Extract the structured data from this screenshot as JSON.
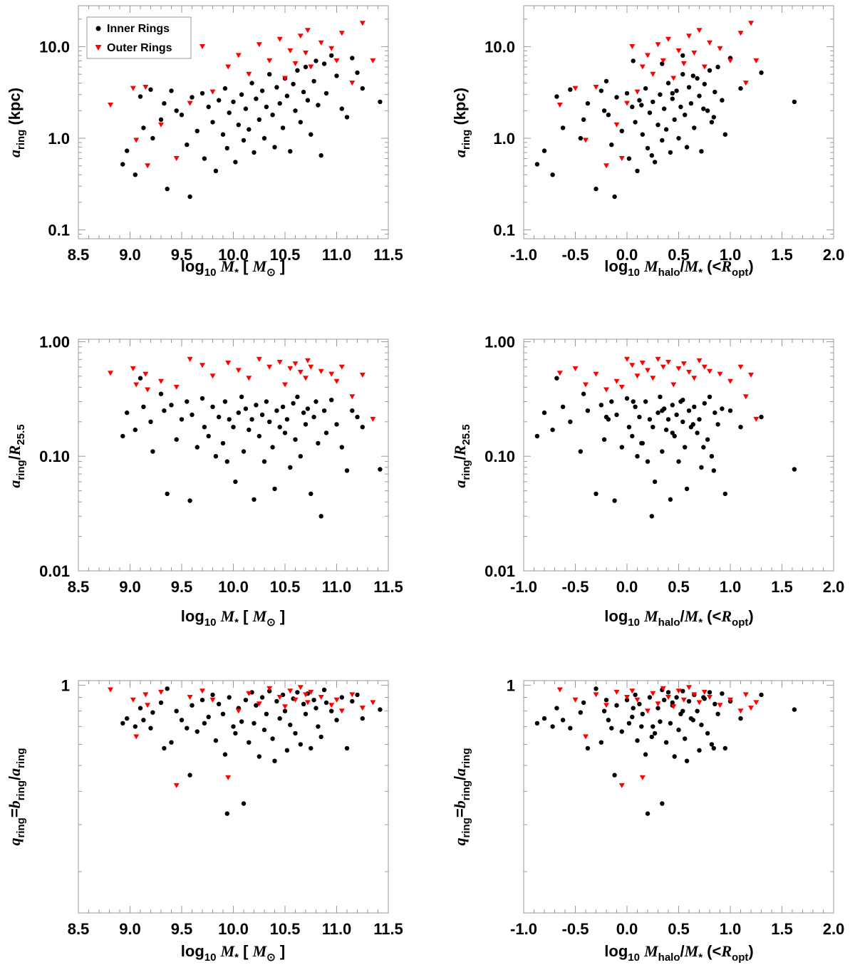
{
  "chart_data": {
    "type": "scatter",
    "layout": "3x2 grid of scatter panels",
    "legend": {
      "position": "top-left (first panel)",
      "entries": [
        {
          "label": "Inner Rings",
          "marker": "circle",
          "color": "#000000"
        },
        {
          "label": "Outer Rings",
          "marker": "triangle-down",
          "color": "#ff0000"
        }
      ]
    },
    "x_axes": {
      "mstar": {
        "label_text": "log10 M* [ M⊙]",
        "label_parts": [
          "log",
          "10",
          "M",
          "*",
          "[",
          "M",
          "⊙",
          "]"
        ],
        "xlim": [
          8.5,
          11.5
        ],
        "ticks": [
          8.5,
          9.0,
          9.5,
          10.0,
          10.5,
          11.0,
          11.5
        ],
        "tick_labels": [
          "8.5",
          "9.0",
          "9.5",
          "10.0",
          "10.5",
          "11.0",
          "11.5"
        ]
      },
      "halo": {
        "label_text": "log10 Mhalo/M* (<Ropt)",
        "label_parts": [
          "log",
          "10",
          "M",
          "halo",
          "/",
          "M",
          "*",
          "(<",
          "R",
          "opt",
          ")"
        ],
        "xlim": [
          -1.0,
          2.0
        ],
        "ticks": [
          -1.0,
          -0.5,
          0.0,
          0.5,
          1.0,
          1.5,
          2.0
        ],
        "tick_labels": [
          "-1.0",
          "-0.5",
          "0.0",
          "0.5",
          "1.0",
          "1.5",
          "2.0"
        ]
      }
    },
    "y_axes": {
      "aring": {
        "label_text": "aring (kpc)",
        "label_parts": [
          "a",
          "ring",
          "(kpc)"
        ],
        "scale": "log",
        "ylim": [
          0.08,
          28
        ],
        "ticks": [
          0.1,
          1.0,
          10.0
        ],
        "tick_labels": [
          "0.1",
          "1.0",
          "10.0"
        ]
      },
      "ratio": {
        "label_text": "aring/R25.5",
        "label_parts": [
          "a",
          "ring",
          "/",
          "R",
          "25.5"
        ],
        "scale": "log",
        "ylim": [
          0.01,
          1.05
        ],
        "ticks": [
          0.01,
          0.1,
          1.0
        ],
        "tick_labels": [
          "0.01",
          "0.10",
          "1.00"
        ]
      },
      "q": {
        "label_text": "qring=bring/aring",
        "label_parts": [
          "q",
          "ring",
          "=",
          "b",
          "ring",
          "/",
          "a",
          "ring"
        ],
        "scale": "log",
        "ylim": [
          0.14,
          1.04
        ],
        "ticks": [
          1.0
        ],
        "tick_labels": [
          "1"
        ]
      }
    },
    "panels": [
      {
        "row": 0,
        "col": 0,
        "x": "mstar",
        "y": "aring",
        "show_legend": true
      },
      {
        "row": 0,
        "col": 1,
        "x": "halo",
        "y": "aring",
        "show_legend": false
      },
      {
        "row": 1,
        "col": 0,
        "x": "mstar",
        "y": "ratio",
        "show_legend": false
      },
      {
        "row": 1,
        "col": 1,
        "x": "halo",
        "y": "ratio",
        "show_legend": false
      },
      {
        "row": 2,
        "col": 0,
        "x": "mstar",
        "y": "q",
        "show_legend": false
      },
      {
        "row": 2,
        "col": 1,
        "x": "halo",
        "y": "q",
        "show_legend": false
      }
    ],
    "series": [
      {
        "name": "Inner Rings",
        "color": "#000000",
        "marker": "circle",
        "note": "representative sample of points read off the figure; columns: log M*, log Mhalo/M*, a_ring (kpc), a_ring/R25.5, q_ring",
        "points": [
          [
            8.93,
            -0.87,
            0.52,
            0.15,
            0.72
          ],
          [
            8.97,
            -0.8,
            0.73,
            0.24,
            0.75
          ],
          [
            9.05,
            -0.72,
            0.4,
            0.17,
            0.7
          ],
          [
            9.1,
            -0.68,
            2.85,
            0.48,
            0.82
          ],
          [
            9.13,
            -0.62,
            1.3,
            0.27,
            0.74
          ],
          [
            9.2,
            -0.55,
            3.4,
            0.2,
            0.69
          ],
          [
            9.22,
            -0.45,
            1.0,
            0.11,
            0.79
          ],
          [
            9.3,
            -0.42,
            1.6,
            0.35,
            0.86
          ],
          [
            9.33,
            -0.38,
            2.4,
            0.25,
            0.58
          ],
          [
            9.36,
            -0.3,
            0.28,
            0.047,
            0.97
          ],
          [
            9.4,
            -0.25,
            3.3,
            0.28,
            0.61
          ],
          [
            9.45,
            -0.22,
            2.0,
            0.14,
            0.8
          ],
          [
            9.5,
            -0.18,
            1.8,
            0.21,
            0.74
          ],
          [
            9.55,
            -0.15,
            0.85,
            0.3,
            0.69
          ],
          [
            9.58,
            -0.12,
            0.23,
            0.041,
            0.46
          ],
          [
            9.6,
            -0.1,
            2.8,
            0.23,
            0.84
          ],
          [
            9.65,
            -0.05,
            1.2,
            0.12,
            0.67
          ],
          [
            9.7,
            0.0,
            3.1,
            0.32,
            0.88
          ],
          [
            9.72,
            0.02,
            0.6,
            0.18,
            0.72
          ],
          [
            9.76,
            0.05,
            2.2,
            0.15,
            0.76
          ],
          [
            9.8,
            0.08,
            1.5,
            0.27,
            0.92
          ],
          [
            9.83,
            0.1,
            0.44,
            0.1,
            0.62
          ],
          [
            9.86,
            0.12,
            2.6,
            0.22,
            0.85
          ],
          [
            9.9,
            0.15,
            1.1,
            0.13,
            0.78
          ],
          [
            9.92,
            0.18,
            3.5,
            0.3,
            0.55
          ],
          [
            9.94,
            0.2,
            0.78,
            0.09,
            0.33
          ],
          [
            9.96,
            0.22,
            1.9,
            0.21,
            0.9
          ],
          [
            10.0,
            0.25,
            2.5,
            0.18,
            0.7
          ],
          [
            10.02,
            0.27,
            0.55,
            0.06,
            0.66
          ],
          [
            10.05,
            0.3,
            1.4,
            0.24,
            0.82
          ],
          [
            10.08,
            0.32,
            3.0,
            0.33,
            0.73
          ],
          [
            10.1,
            0.34,
            0.95,
            0.11,
            0.36
          ],
          [
            10.12,
            0.36,
            2.1,
            0.26,
            0.88
          ],
          [
            10.15,
            0.38,
            1.25,
            0.17,
            0.61
          ],
          [
            10.18,
            0.4,
            4.0,
            0.21,
            0.94
          ],
          [
            10.2,
            0.42,
            0.7,
            0.042,
            0.72
          ],
          [
            10.22,
            0.44,
            2.7,
            0.28,
            0.84
          ],
          [
            10.25,
            0.46,
            1.6,
            0.15,
            0.54
          ],
          [
            10.28,
            0.48,
            3.3,
            0.23,
            0.9
          ],
          [
            10.3,
            0.5,
            1.0,
            0.09,
            0.68
          ],
          [
            10.32,
            0.52,
            2.2,
            0.3,
            0.78
          ],
          [
            10.35,
            0.54,
            5.0,
            0.2,
            0.95
          ],
          [
            10.38,
            0.56,
            1.8,
            0.12,
            0.63
          ],
          [
            10.4,
            0.58,
            0.8,
            0.052,
            0.52
          ],
          [
            10.42,
            0.6,
            3.6,
            0.25,
            0.87
          ],
          [
            10.45,
            0.62,
            2.4,
            0.18,
            0.75
          ],
          [
            10.48,
            0.65,
            1.3,
            0.27,
            0.92
          ],
          [
            10.5,
            0.68,
            4.5,
            0.16,
            0.8
          ],
          [
            10.52,
            0.7,
            2.9,
            0.21,
            0.57
          ],
          [
            10.55,
            0.72,
            0.72,
            0.08,
            0.71
          ],
          [
            10.58,
            0.75,
            3.9,
            0.29,
            0.89
          ],
          [
            10.6,
            0.78,
            2.0,
            0.14,
            0.66
          ],
          [
            10.62,
            0.8,
            5.5,
            0.33,
            0.94
          ],
          [
            10.65,
            0.82,
            1.5,
            0.1,
            0.6
          ],
          [
            10.68,
            0.85,
            3.2,
            0.24,
            0.85
          ],
          [
            10.7,
            0.88,
            6.0,
            0.19,
            0.78
          ],
          [
            10.72,
            0.92,
            2.6,
            0.26,
            0.93
          ],
          [
            10.75,
            0.95,
            1.1,
            0.047,
            0.58
          ],
          [
            10.78,
            -0.2,
            4.2,
            0.22,
            0.88
          ],
          [
            10.8,
            0.06,
            7.0,
            0.3,
            0.82
          ],
          [
            10.82,
            0.14,
            2.3,
            0.13,
            0.7
          ],
          [
            10.85,
            0.24,
            0.65,
            0.03,
            0.64
          ],
          [
            10.88,
            0.34,
            6.5,
            0.25,
            0.96
          ],
          [
            10.9,
            0.44,
            3.1,
            0.16,
            0.86
          ],
          [
            10.95,
            0.54,
            8.0,
            0.31,
            0.8
          ],
          [
            11.0,
            0.64,
            4.8,
            0.19,
            0.74
          ],
          [
            11.05,
            0.74,
            2.1,
            0.12,
            0.9
          ],
          [
            11.1,
            0.84,
            1.7,
            0.075,
            0.58
          ],
          [
            11.15,
            1.0,
            7.5,
            0.25,
            0.87
          ],
          [
            11.2,
            1.3,
            5.2,
            0.22,
            0.92
          ],
          [
            11.25,
            1.1,
            3.5,
            0.18,
            0.75
          ],
          [
            11.42,
            1.62,
            2.5,
            0.077,
            0.81
          ]
        ]
      },
      {
        "name": "Outer Rings",
        "color": "#ff0000",
        "marker": "triangle-down",
        "note": "representative sample of points read off the figure; columns: log M*, log Mhalo/M*, a_ring (kpc), a_ring/R25.5, q_ring",
        "points": [
          [
            8.81,
            -0.65,
            2.3,
            0.53,
            0.96
          ],
          [
            9.03,
            -0.5,
            3.5,
            0.58,
            0.88
          ],
          [
            9.06,
            -0.4,
            0.95,
            0.42,
            0.64
          ],
          [
            9.15,
            -0.3,
            3.6,
            0.52,
            0.92
          ],
          [
            9.17,
            -0.2,
            0.5,
            0.38,
            0.84
          ],
          [
            9.3,
            -0.1,
            1.4,
            0.45,
            0.94
          ],
          [
            9.45,
            -0.05,
            0.6,
            0.4,
            0.42
          ],
          [
            9.58,
            0.0,
            2.4,
            0.7,
            0.9
          ],
          [
            9.7,
            0.05,
            10.0,
            0.62,
            0.95
          ],
          [
            9.8,
            0.1,
            3.2,
            0.5,
            0.88
          ],
          [
            9.95,
            0.15,
            6.0,
            0.65,
            0.45
          ],
          [
            10.05,
            0.2,
            8.0,
            0.56,
            0.8
          ],
          [
            10.15,
            0.25,
            5.0,
            0.48,
            0.93
          ],
          [
            10.25,
            0.3,
            10.5,
            0.7,
            0.85
          ],
          [
            10.35,
            0.35,
            7.0,
            0.6,
            0.97
          ],
          [
            10.45,
            0.4,
            12.0,
            0.66,
            0.9
          ],
          [
            10.5,
            0.45,
            4.5,
            0.42,
            0.83
          ],
          [
            10.55,
            0.5,
            9.0,
            0.58,
            0.95
          ],
          [
            10.6,
            0.55,
            6.5,
            0.64,
            0.88
          ],
          [
            10.65,
            0.6,
            13.0,
            0.54,
            0.98
          ],
          [
            10.7,
            0.65,
            8.5,
            0.48,
            0.92
          ],
          [
            10.72,
            0.7,
            15.0,
            0.68,
            0.86
          ],
          [
            10.75,
            0.75,
            6.0,
            0.6,
            0.94
          ],
          [
            10.85,
            0.8,
            11.0,
            0.55,
            0.9
          ],
          [
            10.95,
            0.9,
            9.5,
            0.52,
            0.84
          ],
          [
            11.0,
            1.0,
            7.0,
            0.45,
            0.88
          ],
          [
            11.05,
            1.1,
            14.0,
            0.6,
            0.8
          ],
          [
            11.15,
            1.15,
            4.0,
            0.33,
            0.92
          ],
          [
            11.25,
            1.2,
            18.0,
            0.51,
            0.82
          ],
          [
            11.35,
            1.25,
            7.0,
            0.21,
            0.86
          ]
        ]
      }
    ]
  }
}
